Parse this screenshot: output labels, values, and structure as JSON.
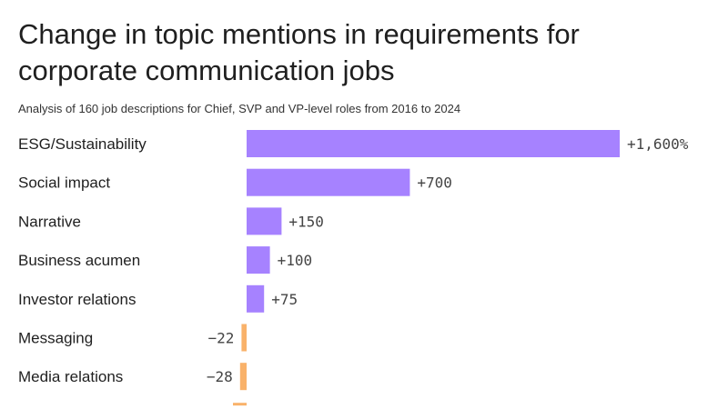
{
  "title": "Change in topic mentions in requirements for corporate communication jobs",
  "subtitle": "Analysis of 160 job descriptions for Chief, SVP and VP-level roles from 2016 to 2024",
  "colors": {
    "positive": "#a682ff",
    "negative": "#f9b26a"
  },
  "chart_data": {
    "type": "bar",
    "orientation": "horizontal",
    "title": "Change in topic mentions in requirements for corporate communication jobs",
    "subtitle": "Analysis of 160 job descriptions for Chief, SVP and VP-level roles from 2016 to 2024",
    "unit": "%",
    "categories": [
      "ESG/Sustainability",
      "Social impact",
      "Narrative",
      "Business acumen",
      "Investor relations",
      "Messaging",
      "Media relations"
    ],
    "values": [
      1600,
      700,
      150,
      100,
      75,
      -22,
      -28
    ],
    "labels": [
      "+1,600%",
      "+700",
      "+150",
      "+100",
      "+75",
      "−22",
      "−28"
    ],
    "xlim": [
      -28,
      1600
    ],
    "grid": false,
    "legend": "none"
  }
}
